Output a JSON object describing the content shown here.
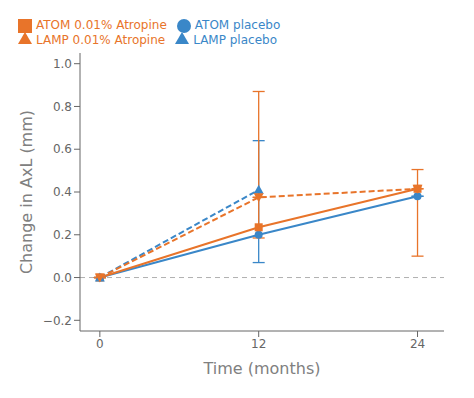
{
  "chart_data": {
    "type": "line",
    "xlabel": "Time (months)",
    "ylabel": "Change in AxL (mm)",
    "xlim": [
      -1.5,
      26
    ],
    "ylim": [
      -0.25,
      1.05
    ],
    "xticks": [
      0,
      12,
      24
    ],
    "yticks": [
      {
        "value": -0.2,
        "label": "−0.2"
      },
      {
        "value": 0.0,
        "label": "0.0"
      },
      0.2,
      0.4,
      0.6,
      0.8,
      {
        "value": 1.0,
        "label": "1.0"
      }
    ],
    "legend": "upper left",
    "grid": false,
    "reference_lines": [
      {
        "y": 0,
        "color": "#b0b0b0",
        "line_style": "dashed"
      }
    ],
    "series": [
      {
        "name": "ATOM placebo",
        "color": "#3a87c8",
        "marker": "circle",
        "line_style": "solid",
        "x": [
          0,
          12,
          24
        ],
        "values": [
          0.0,
          0.2,
          0.38
        ],
        "error_lo": [
          0.0,
          0.13,
          0.0
        ],
        "error_hi": [
          0.0,
          0.44,
          0.0
        ]
      },
      {
        "name": "ATOM 0.01% Atropine",
        "color": "#e8742a",
        "marker": "square",
        "line_style": "solid",
        "x": [
          0,
          12,
          24
        ],
        "values": [
          0.0,
          0.235,
          0.415
        ],
        "error_lo": [
          0.0,
          0.05,
          0.0
        ],
        "error_hi": [
          0.0,
          0.635,
          0.0
        ]
      },
      {
        "name": "LAMP placebo",
        "color": "#3a87c8",
        "marker": "triangle-up",
        "line_style": "dashed",
        "x": [
          0,
          12
        ],
        "values": [
          0.0,
          0.41
        ]
      },
      {
        "name": "LAMP 0.01% Atropine",
        "color": "#e8742a",
        "marker": "triangle-down",
        "line_style": "dashed",
        "x": [
          0,
          12,
          24
        ],
        "values": [
          0.0,
          0.375,
          0.415
        ],
        "error_lo": [
          0.0,
          0.0,
          0.315
        ],
        "error_hi": [
          0.0,
          0.0,
          0.09
        ]
      }
    ]
  }
}
